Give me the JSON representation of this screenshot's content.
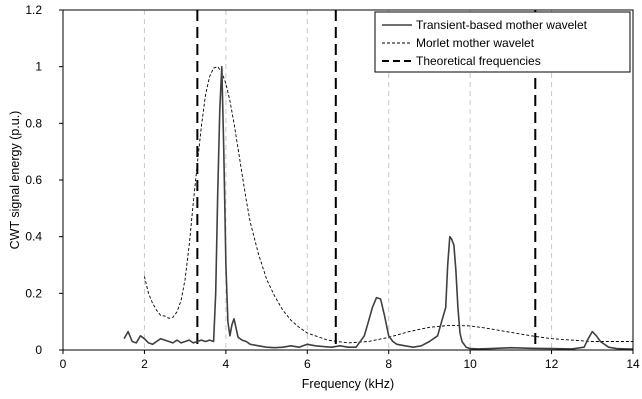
{
  "chart_data": {
    "type": "line",
    "title": "",
    "xlabel": "Frequency (kHz)",
    "ylabel": "CWT signal energy (p.u.)",
    "xlim": [
      0,
      14
    ],
    "ylim": [
      0,
      1.2
    ],
    "xticks": [
      0,
      2,
      4,
      6,
      8,
      10,
      12,
      14
    ],
    "yticks": [
      0,
      0.2,
      0.4,
      0.6,
      0.8,
      1,
      1.2
    ],
    "grid": "vertical dashed at x ticks",
    "legend_position": "top-right",
    "colors": {
      "line": "#404040",
      "axis": "#000000",
      "grid": "#c8c8c8",
      "vline": "#000000"
    },
    "series": [
      {
        "name": "Transient-based mother wavelet",
        "style": "solid",
        "x": [
          1.5,
          1.6,
          1.7,
          1.8,
          1.9,
          2.0,
          2.1,
          2.2,
          2.3,
          2.4,
          2.5,
          2.6,
          2.7,
          2.8,
          2.9,
          3.0,
          3.1,
          3.2,
          3.3,
          3.4,
          3.5,
          3.6,
          3.7,
          3.75,
          3.8,
          3.85,
          3.9,
          3.95,
          4.0,
          4.05,
          4.1,
          4.15,
          4.2,
          4.3,
          4.4,
          4.5,
          4.6,
          4.8,
          5.0,
          5.2,
          5.4,
          5.6,
          5.8,
          6.0,
          6.2,
          6.4,
          6.6,
          6.8,
          7.0,
          7.2,
          7.4,
          7.5,
          7.6,
          7.7,
          7.8,
          7.9,
          8.0,
          8.1,
          8.2,
          8.4,
          8.6,
          8.8,
          9.0,
          9.2,
          9.3,
          9.4,
          9.45,
          9.5,
          9.55,
          9.6,
          9.65,
          9.7,
          9.75,
          9.8,
          9.9,
          10.0,
          10.2,
          10.5,
          11.0,
          11.5,
          12.0,
          12.5,
          12.8,
          12.9,
          13.0,
          13.1,
          13.2,
          13.4,
          13.6,
          13.8,
          14.0
        ],
        "y": [
          0.04,
          0.065,
          0.03,
          0.025,
          0.05,
          0.04,
          0.025,
          0.02,
          0.03,
          0.04,
          0.035,
          0.03,
          0.025,
          0.035,
          0.025,
          0.03,
          0.035,
          0.025,
          0.03,
          0.035,
          0.03,
          0.035,
          0.03,
          0.2,
          0.55,
          0.85,
          1.0,
          0.7,
          0.3,
          0.1,
          0.05,
          0.09,
          0.11,
          0.045,
          0.035,
          0.03,
          0.02,
          0.015,
          0.01,
          0.008,
          0.01,
          0.015,
          0.01,
          0.02,
          0.015,
          0.012,
          0.01,
          0.015,
          0.01,
          0.01,
          0.05,
          0.1,
          0.15,
          0.185,
          0.18,
          0.12,
          0.05,
          0.03,
          0.02,
          0.015,
          0.01,
          0.015,
          0.03,
          0.05,
          0.1,
          0.15,
          0.3,
          0.4,
          0.39,
          0.37,
          0.28,
          0.15,
          0.06,
          0.03,
          0.01,
          0.005,
          0.004,
          0.005,
          0.008,
          0.006,
          0.005,
          0.004,
          0.01,
          0.04,
          0.065,
          0.05,
          0.03,
          0.01,
          0.005,
          0.004,
          0.003
        ]
      },
      {
        "name": "Morlet mother wavelet",
        "style": "dashed",
        "x": [
          2.0,
          2.1,
          2.2,
          2.3,
          2.4,
          2.5,
          2.6,
          2.7,
          2.8,
          2.9,
          3.0,
          3.1,
          3.2,
          3.3,
          3.4,
          3.5,
          3.6,
          3.7,
          3.8,
          3.9,
          4.0,
          4.1,
          4.2,
          4.3,
          4.4,
          4.5,
          4.6,
          4.8,
          5.0,
          5.2,
          5.4,
          5.6,
          5.8,
          6.0,
          6.5,
          7.0,
          7.5,
          8.0,
          8.5,
          9.0,
          9.5,
          10.0,
          10.5,
          11.0,
          11.5,
          12.0,
          12.5,
          13.0,
          14.0
        ],
        "y": [
          0.26,
          0.2,
          0.165,
          0.14,
          0.122,
          0.12,
          0.112,
          0.115,
          0.135,
          0.175,
          0.25,
          0.37,
          0.52,
          0.66,
          0.79,
          0.9,
          0.965,
          0.995,
          1.0,
          0.98,
          0.94,
          0.88,
          0.8,
          0.71,
          0.62,
          0.53,
          0.45,
          0.34,
          0.25,
          0.19,
          0.14,
          0.105,
          0.08,
          0.06,
          0.035,
          0.025,
          0.03,
          0.045,
          0.065,
          0.08,
          0.087,
          0.085,
          0.075,
          0.062,
          0.05,
          0.04,
          0.035,
          0.03,
          0.03
        ]
      },
      {
        "name": "Theoretical frequencies",
        "style": "long-dash vertical lines",
        "x": [
          3.3,
          6.7,
          11.6
        ]
      }
    ]
  }
}
